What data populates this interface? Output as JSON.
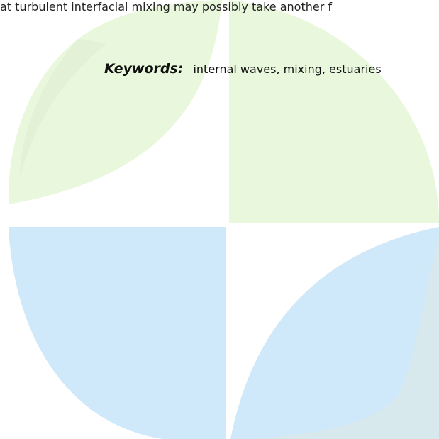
{
  "document": {
    "top_line": "at turbulent interfacial mixing may possibly take another f",
    "keywords": {
      "label": "Keywords:",
      "value": "internal waves, mixing, estuaries"
    }
  },
  "watermark": {
    "colors": {
      "green": "#e9f8dc",
      "green_shade": "#dfeed2",
      "blue": "#cfe9fa",
      "blue_shade": "#dce8e8"
    }
  }
}
